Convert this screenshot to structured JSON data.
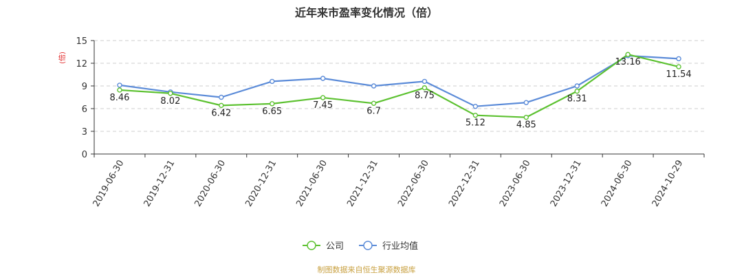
{
  "chart_data": {
    "type": "line",
    "title": "近年来市盈率变化情况（倍）",
    "ylabel": "(倍)",
    "xlabel": "",
    "ylim": [
      0,
      15
    ],
    "yticks": [
      0,
      3,
      6,
      9,
      12,
      15
    ],
    "grid": true,
    "legend_position": "bottom-center",
    "categories": [
      "2019-06-30",
      "2019-12-31",
      "2020-06-30",
      "2020-12-31",
      "2021-06-30",
      "2021-12-31",
      "2022-06-30",
      "2022-12-31",
      "2023-06-30",
      "2023-12-31",
      "2024-06-30",
      "2024-10-29"
    ],
    "series": [
      {
        "name": "公司",
        "color": "#5cc130",
        "values": [
          8.46,
          8.02,
          6.42,
          6.65,
          7.45,
          6.7,
          8.75,
          5.12,
          4.85,
          8.31,
          13.16,
          11.54
        ],
        "labels": [
          "8.46",
          "8.02",
          "6.42",
          "6.65",
          "7.45",
          "6.7",
          "8.75",
          "5.12",
          "4.85",
          "8.31",
          "13.16",
          "11.54"
        ]
      },
      {
        "name": "行业均值",
        "color": "#5b8bd8",
        "values": [
          9.1,
          8.2,
          7.5,
          9.6,
          10.0,
          9.0,
          9.6,
          6.3,
          6.8,
          9.0,
          13.0,
          12.6
        ]
      }
    ]
  },
  "footer": {
    "source": "制图数据来自恒生聚源数据库"
  }
}
